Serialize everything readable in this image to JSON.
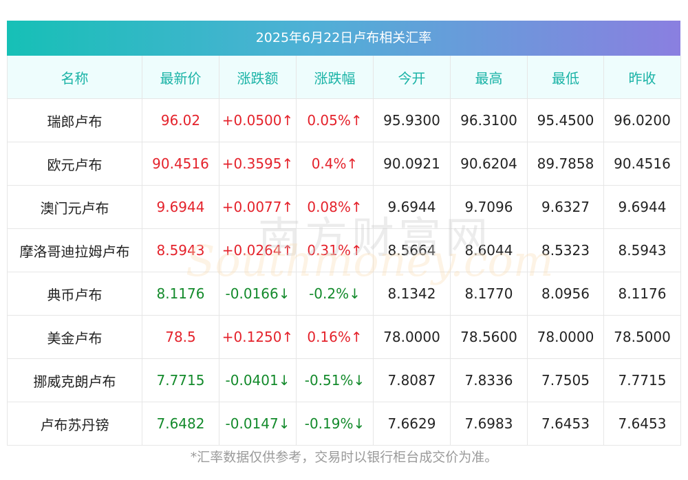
{
  "title": "2025年6月22日卢布相关汇率",
  "headers": [
    "名称",
    "最新价",
    "涨跌额",
    "涨跌幅",
    "今开",
    "最高",
    "最低",
    "昨收"
  ],
  "rows": [
    {
      "name": "瑞郎卢布",
      "latest": "96.02",
      "change": "+0.0500↑",
      "pct": "0.05%↑",
      "open": "95.9300",
      "high": "96.3100",
      "low": "95.4500",
      "prev": "96.0200",
      "trend": "up"
    },
    {
      "name": "欧元卢布",
      "latest": "90.4516",
      "change": "+0.3595↑",
      "pct": "0.4%↑",
      "open": "90.0921",
      "high": "90.6204",
      "low": "89.7858",
      "prev": "90.4516",
      "trend": "up"
    },
    {
      "name": "澳门元卢布",
      "latest": "9.6944",
      "change": "+0.0077↑",
      "pct": "0.08%↑",
      "open": "9.6944",
      "high": "9.7096",
      "low": "9.6327",
      "prev": "9.6944",
      "trend": "up"
    },
    {
      "name": "摩洛哥迪拉姆卢布",
      "latest": "8.5943",
      "change": "+0.0264↑",
      "pct": "0.31%↑",
      "open": "8.5664",
      "high": "8.6044",
      "low": "8.5323",
      "prev": "8.5943",
      "trend": "up"
    },
    {
      "name": "典币卢布",
      "latest": "8.1176",
      "change": "-0.0166↓",
      "pct": "-0.2%↓",
      "open": "8.1342",
      "high": "8.1770",
      "low": "8.0956",
      "prev": "8.1176",
      "trend": "down"
    },
    {
      "name": "美金卢布",
      "latest": "78.5",
      "change": "+0.1250↑",
      "pct": "0.16%↑",
      "open": "78.0000",
      "high": "78.5600",
      "low": "78.0000",
      "prev": "78.5000",
      "trend": "up"
    },
    {
      "name": "挪威克朗卢布",
      "latest": "7.7715",
      "change": "-0.0401↓",
      "pct": "-0.51%↓",
      "open": "7.8087",
      "high": "7.8336",
      "low": "7.7505",
      "prev": "7.7715",
      "trend": "down"
    },
    {
      "name": "卢布苏丹镑",
      "latest": "7.6482",
      "change": "-0.0147↓",
      "pct": "-0.19%↓",
      "open": "7.6629",
      "high": "7.6983",
      "low": "7.6453",
      "prev": "7.6453",
      "trend": "down"
    }
  ],
  "watermark": {
    "cn": "南方财富网",
    "en": "Southmoney.com"
  },
  "footnote": "*汇率数据仅供参考，交易时以银行柜台成交价为准。",
  "colors": {
    "up": "#e4222b",
    "down": "#138a2b",
    "header_text": "#1ab3a6"
  }
}
